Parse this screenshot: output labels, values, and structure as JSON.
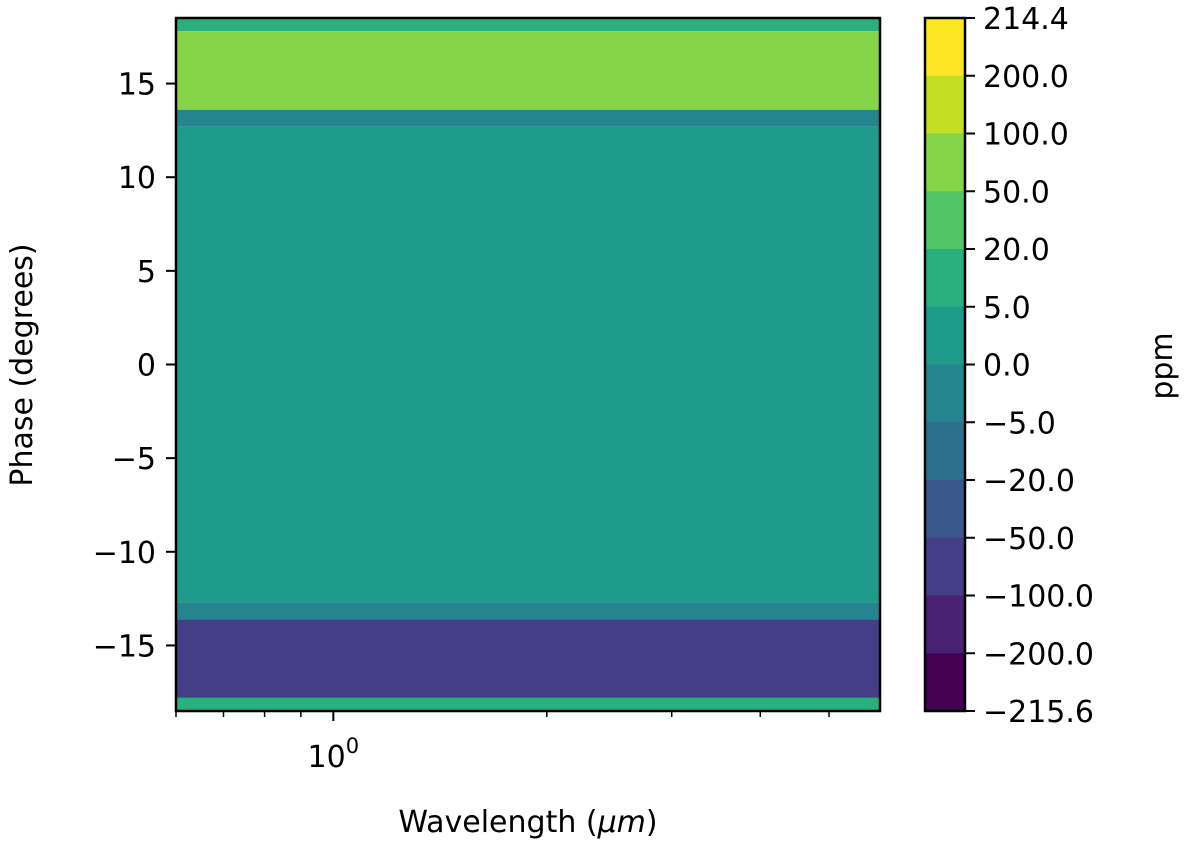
{
  "chart_data": {
    "type": "heatmap",
    "title": "",
    "xlabel": "Wavelength (",
    "xlabel_mu": "μm",
    "xlabel_close": ")",
    "ylabel": "Phase (degrees)",
    "xscale": "log",
    "xlim": [
      0.6,
      5.9
    ],
    "ylim": [
      -18.5,
      18.5
    ],
    "x_ticks": [
      {
        "value": 1.0,
        "base": "10",
        "exp": "0"
      }
    ],
    "y_ticks": [
      {
        "value": 15,
        "label": "15"
      },
      {
        "value": 10,
        "label": "10"
      },
      {
        "value": 5,
        "label": "5"
      },
      {
        "value": 0,
        "label": "0"
      },
      {
        "value": -5,
        "label": "−5"
      },
      {
        "value": -10,
        "label": "−10"
      },
      {
        "value": -15,
        "label": "−15"
      }
    ],
    "phase_bands": [
      {
        "phase_min": 17.8,
        "phase_max": 18.5,
        "value_ppm": 10
      },
      {
        "phase_min": 13.6,
        "phase_max": 17.8,
        "value_ppm": 75
      },
      {
        "phase_min": 12.7,
        "phase_max": 13.6,
        "value_ppm": -3
      },
      {
        "phase_min": -12.7,
        "phase_max": 12.7,
        "value_ppm": 2
      },
      {
        "phase_min": -13.6,
        "phase_max": -12.7,
        "value_ppm": -3
      },
      {
        "phase_min": -17.8,
        "phase_max": -13.6,
        "value_ppm": -75
      },
      {
        "phase_min": -18.5,
        "phase_max": -17.8,
        "value_ppm": 10
      }
    ],
    "colorbar": {
      "label": "ppm",
      "boundaries": [
        "214.4",
        "200.0",
        "100.0",
        "50.0",
        "20.0",
        "5.0",
        "0.0",
        "−5.0",
        "−20.0",
        "−50.0",
        "−100.0",
        "−200.0",
        "−215.6"
      ],
      "colors": [
        "#fde725",
        "#c2df23",
        "#86d549",
        "#52c569",
        "#2ab07f",
        "#1e9b8a",
        "#25858e",
        "#2d708e",
        "#38588c",
        "#433e85",
        "#482173",
        "#440154"
      ]
    }
  }
}
